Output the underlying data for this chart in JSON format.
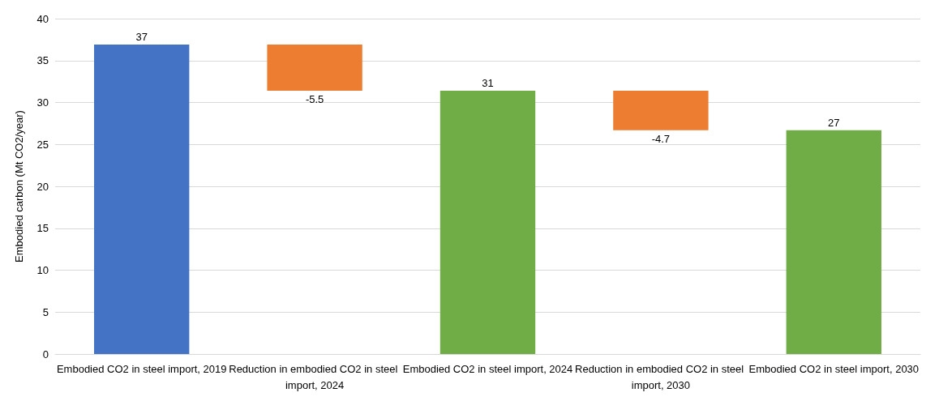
{
  "chart_data": {
    "type": "bar",
    "ylabel": "Embodied carbon (Mt CO2/year)",
    "categories": [
      "Embodied CO2 in steel import, 2019",
      "Reduction in embodied CO2 in steel import, 2024",
      "Embodied CO2 in steel import, 2024",
      "Reduction in embodied CO2 in steel import, 2030",
      "Embodied CO2 in steel import, 2030"
    ],
    "values": [
      36.9,
      -5.5,
      31.4,
      -4.7,
      26.7
    ],
    "base": [
      0,
      36.9,
      0,
      31.4,
      0
    ],
    "colors": [
      "#4472c4",
      "#ed7d31",
      "#70ad47",
      "#ed7d31",
      "#70ad47"
    ],
    "value_labels": [
      "37",
      "-5.5",
      "31",
      "-4.7",
      "27"
    ],
    "ylim": [
      0,
      40
    ],
    "yticks": [
      0,
      5,
      10,
      15,
      20,
      25,
      30,
      35,
      40
    ],
    "grid": "y"
  }
}
